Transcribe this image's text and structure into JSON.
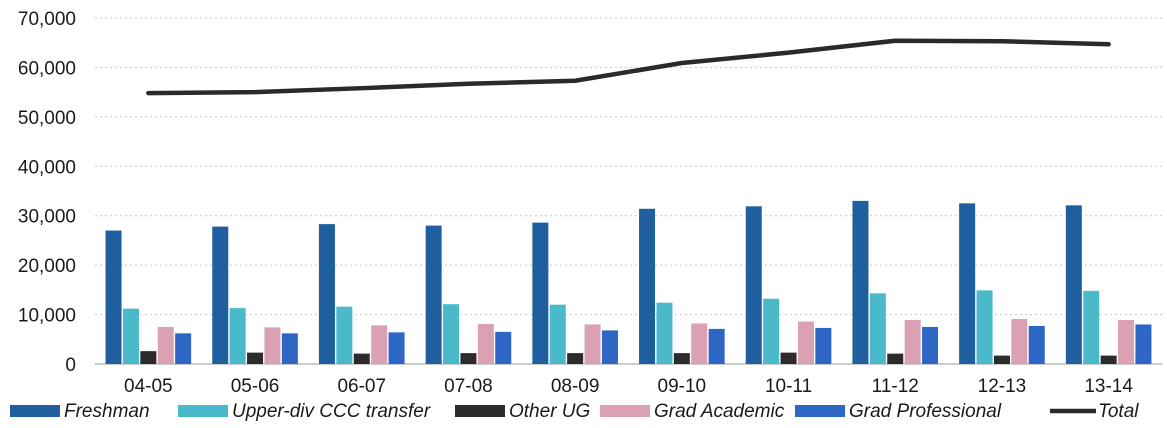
{
  "chart_data": {
    "type": "bar",
    "title": "",
    "xlabel": "",
    "ylabel": "",
    "ylim": [
      0,
      70000
    ],
    "yticks": [
      0,
      10000,
      20000,
      30000,
      40000,
      50000,
      60000,
      70000
    ],
    "ytick_labels": [
      "0",
      "10,000",
      "20,000",
      "30,000",
      "40,000",
      "50,000",
      "60,000",
      "70,000"
    ],
    "grid": true,
    "legend_position": "bottom",
    "categories": [
      "04-05",
      "05-06",
      "06-07",
      "07-08",
      "08-09",
      "09-10",
      "10-11",
      "11-12",
      "12-13",
      "13-14"
    ],
    "series": [
      {
        "name": "Freshman",
        "type": "bar",
        "color": "#1f5fa0",
        "values": [
          27000,
          27800,
          28300,
          28000,
          28600,
          31400,
          31900,
          33000,
          32500,
          32100
        ]
      },
      {
        "name": "Upper-div CCC transfer",
        "type": "bar",
        "color": "#4ab9c9",
        "values": [
          11200,
          11300,
          11600,
          12100,
          12000,
          12400,
          13200,
          14300,
          14900,
          14800
        ]
      },
      {
        "name": "Other UG",
        "type": "bar",
        "color": "#2b2b2b",
        "values": [
          2600,
          2300,
          2100,
          2200,
          2200,
          2200,
          2300,
          2100,
          1700,
          1700
        ]
      },
      {
        "name": "Grad Academic",
        "type": "bar",
        "color": "#dba0b4",
        "values": [
          7500,
          7400,
          7800,
          8100,
          8000,
          8200,
          8600,
          8900,
          9100,
          8900
        ]
      },
      {
        "name": "Grad Professional",
        "type": "bar",
        "color": "#2d66c4",
        "values": [
          6200,
          6200,
          6400,
          6500,
          6800,
          7100,
          7300,
          7500,
          7700,
          8000
        ]
      },
      {
        "name": "Total",
        "type": "line",
        "color": "#2a2a2a",
        "values": [
          54800,
          55000,
          55800,
          56700,
          57300,
          60900,
          63000,
          65400,
          65300,
          64700
        ]
      }
    ]
  }
}
